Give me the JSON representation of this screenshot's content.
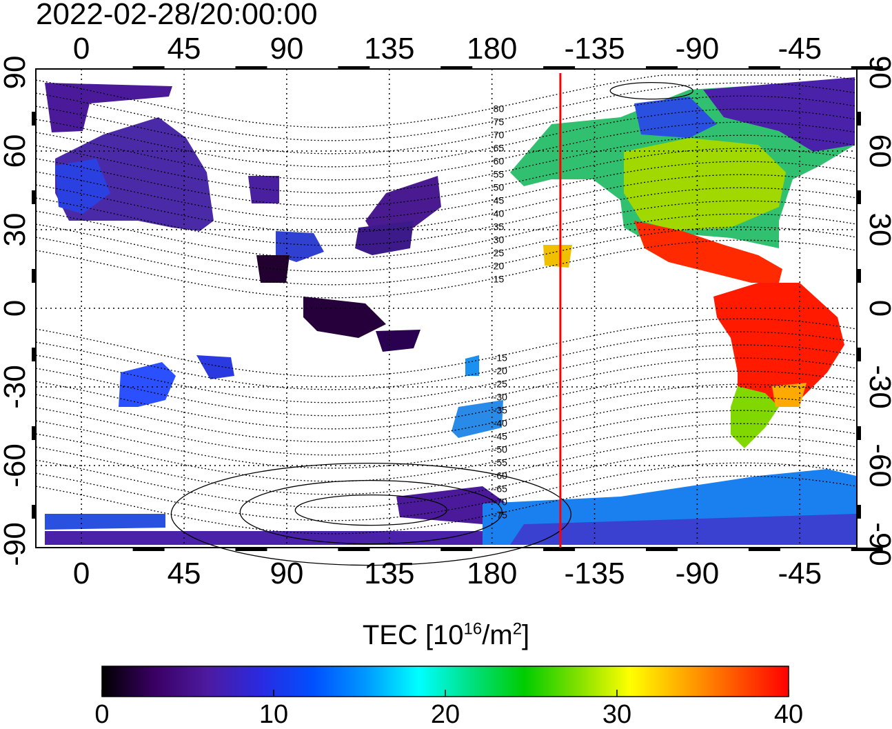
{
  "timestamp": "2022-02-28/20:00:00",
  "map": {
    "top_lon_labels": [
      "0",
      "45",
      "90",
      "135",
      "180",
      "-135",
      "-90",
      "-45"
    ],
    "bottom_lon_labels": [
      "0",
      "45",
      "90",
      "135",
      "180",
      "-135",
      "-90",
      "-45"
    ],
    "left_lat_labels": [
      "90",
      "60",
      "30",
      "0",
      "-30",
      "-60",
      "-90"
    ],
    "right_lat_labels": [
      "90",
      "60",
      "30",
      "0",
      "-30",
      "-60",
      "-90"
    ],
    "magnetic_latitude_labels": [
      "80",
      "75",
      "70",
      "65",
      "60",
      "55",
      "50",
      "45",
      "40",
      "35",
      "30",
      "25",
      "20",
      "15",
      "-15",
      "-20",
      "-25",
      "-30",
      "-35",
      "-40",
      "-45",
      "-50",
      "-55",
      "-60",
      "-65",
      "-70",
      "-75"
    ],
    "line_color": "#000000",
    "terminator_color": "#ff0000",
    "terminator_lon": -150
  },
  "colorbar": {
    "title_main": "TEC  [10",
    "title_exp1": "16",
    "title_mid": "/m",
    "title_exp2": "2",
    "title_end": "]",
    "tick_labels": [
      "0",
      "10",
      "20",
      "30",
      "40"
    ],
    "min": 0,
    "max": 40,
    "colors": [
      "#000000",
      "#3a0064",
      "#4d1aa0",
      "#2a2ae0",
      "#0050ff",
      "#0099ff",
      "#00ffff",
      "#00e080",
      "#00cc00",
      "#80e000",
      "#ffff00",
      "#ffaa00",
      "#ff5500",
      "#ff0000"
    ]
  }
}
